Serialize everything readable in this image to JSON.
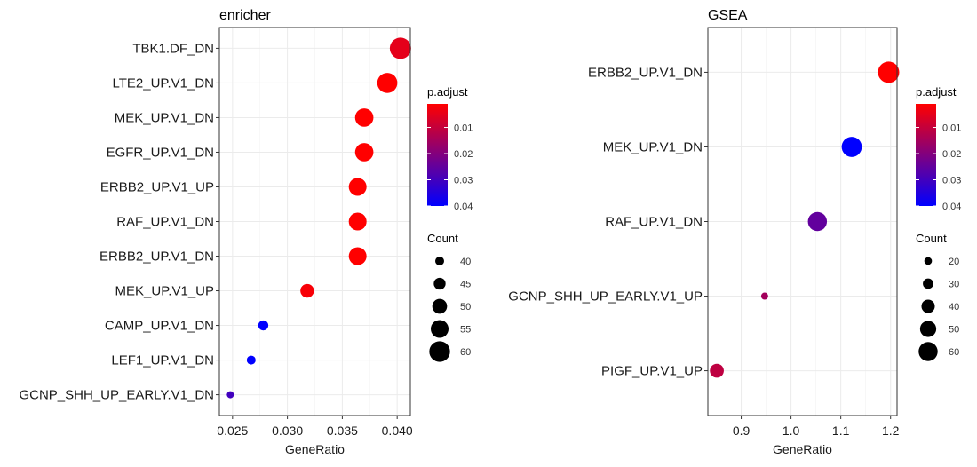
{
  "chart_data": [
    {
      "type": "scatter",
      "title": "enricher",
      "xlabel": "GeneRatio",
      "ylabel": "",
      "xlim": [
        0.0238,
        0.0412
      ],
      "xticks": [
        0.025,
        0.03,
        0.035,
        0.04
      ],
      "xtick_labels": [
        "0.025",
        "0.030",
        "0.035",
        "0.040"
      ],
      "grid": true,
      "categories": [
        "TBK1.DF_DN",
        "LTE2_UP.V1_DN",
        "MEK_UP.V1_DN",
        "EGFR_UP.V1_DN",
        "ERBB2_UP.V1_UP",
        "RAF_UP.V1_DN",
        "ERBB2_UP.V1_DN",
        "MEK_UP.V1_UP",
        "CAMP_UP.V1_DN",
        "LEF1_UP.V1_DN",
        "GCNP_SHH_UP_EARLY.V1_DN"
      ],
      "points": [
        {
          "term": "TBK1.DF_DN",
          "gene_ratio": 0.0403,
          "count": 61,
          "p_adjust": 0.005
        },
        {
          "term": "LTE2_UP.V1_DN",
          "gene_ratio": 0.0391,
          "count": 59,
          "p_adjust": 0.001
        },
        {
          "term": "MEK_UP.V1_DN",
          "gene_ratio": 0.037,
          "count": 56,
          "p_adjust": 0.001
        },
        {
          "term": "EGFR_UP.V1_DN",
          "gene_ratio": 0.037,
          "count": 56,
          "p_adjust": 0.001
        },
        {
          "term": "ERBB2_UP.V1_UP",
          "gene_ratio": 0.0364,
          "count": 55,
          "p_adjust": 0.001
        },
        {
          "term": "RAF_UP.V1_DN",
          "gene_ratio": 0.0364,
          "count": 55,
          "p_adjust": 0.001
        },
        {
          "term": "ERBB2_UP.V1_DN",
          "gene_ratio": 0.0364,
          "count": 55,
          "p_adjust": 0.001
        },
        {
          "term": "MEK_UP.V1_UP",
          "gene_ratio": 0.0318,
          "count": 48,
          "p_adjust": 0.002
        },
        {
          "term": "CAMP_UP.V1_DN",
          "gene_ratio": 0.0278,
          "count": 42,
          "p_adjust": 0.04
        },
        {
          "term": "LEF1_UP.V1_DN",
          "gene_ratio": 0.0267,
          "count": 40,
          "p_adjust": 0.04
        },
        {
          "term": "GCNP_SHH_UP_EARLY.V1_DN",
          "gene_ratio": 0.0248,
          "count": 37,
          "p_adjust": 0.03
        }
      ],
      "color_legend": {
        "title": "p.adjust",
        "range": [
          0.001,
          0.04
        ],
        "ticks": [
          0.01,
          0.02,
          0.03,
          0.04
        ],
        "tick_labels": [
          "0.01",
          "0.02",
          "0.03",
          "0.04"
        ],
        "low_color": "#ff0000",
        "high_color": "#0000ff"
      },
      "size_legend": {
        "title": "Count",
        "range": [
          37,
          61
        ],
        "values": [
          40,
          45,
          50,
          55,
          60
        ],
        "labels": [
          "40",
          "45",
          "50",
          "55",
          "60"
        ]
      }
    },
    {
      "type": "scatter",
      "title": "GSEA",
      "xlabel": "GeneRatio",
      "ylabel": "",
      "xlim": [
        0.833,
        1.213
      ],
      "xticks": [
        0.9,
        1.0,
        1.1,
        1.2
      ],
      "xtick_labels": [
        "0.9",
        "1.0",
        "1.1",
        "1.2"
      ],
      "grid": true,
      "categories": [
        "ERBB2_UP.V1_DN",
        "MEK_UP.V1_DN",
        "RAF_UP.V1_DN",
        "GCNP_SHH_UP_EARLY.V1_UP",
        "PIGF_UP.V1_UP"
      ],
      "points": [
        {
          "term": "ERBB2_UP.V1_DN",
          "gene_ratio": 1.196,
          "count": 68,
          "p_adjust": 0.001
        },
        {
          "term": "MEK_UP.V1_DN",
          "gene_ratio": 1.122,
          "count": 64,
          "p_adjust": 0.04
        },
        {
          "term": "RAF_UP.V1_DN",
          "gene_ratio": 1.053,
          "count": 60,
          "p_adjust": 0.025
        },
        {
          "term": "GCNP_SHH_UP_EARLY.V1_UP",
          "gene_ratio": 0.947,
          "count": 18,
          "p_adjust": 0.015
        },
        {
          "term": "PIGF_UP.V1_UP",
          "gene_ratio": 0.851,
          "count": 42,
          "p_adjust": 0.011
        }
      ],
      "color_legend": {
        "title": "p.adjust",
        "range": [
          0.001,
          0.04
        ],
        "ticks": [
          0.01,
          0.02,
          0.03,
          0.04
        ],
        "tick_labels": [
          "0.01",
          "0.02",
          "0.03",
          "0.04"
        ],
        "low_color": "#ff0000",
        "high_color": "#0000ff"
      },
      "size_legend": {
        "title": "Count",
        "range": [
          18,
          68
        ],
        "values": [
          20,
          30,
          40,
          50,
          60
        ],
        "labels": [
          "20",
          "30",
          "40",
          "50",
          "60"
        ]
      }
    }
  ]
}
